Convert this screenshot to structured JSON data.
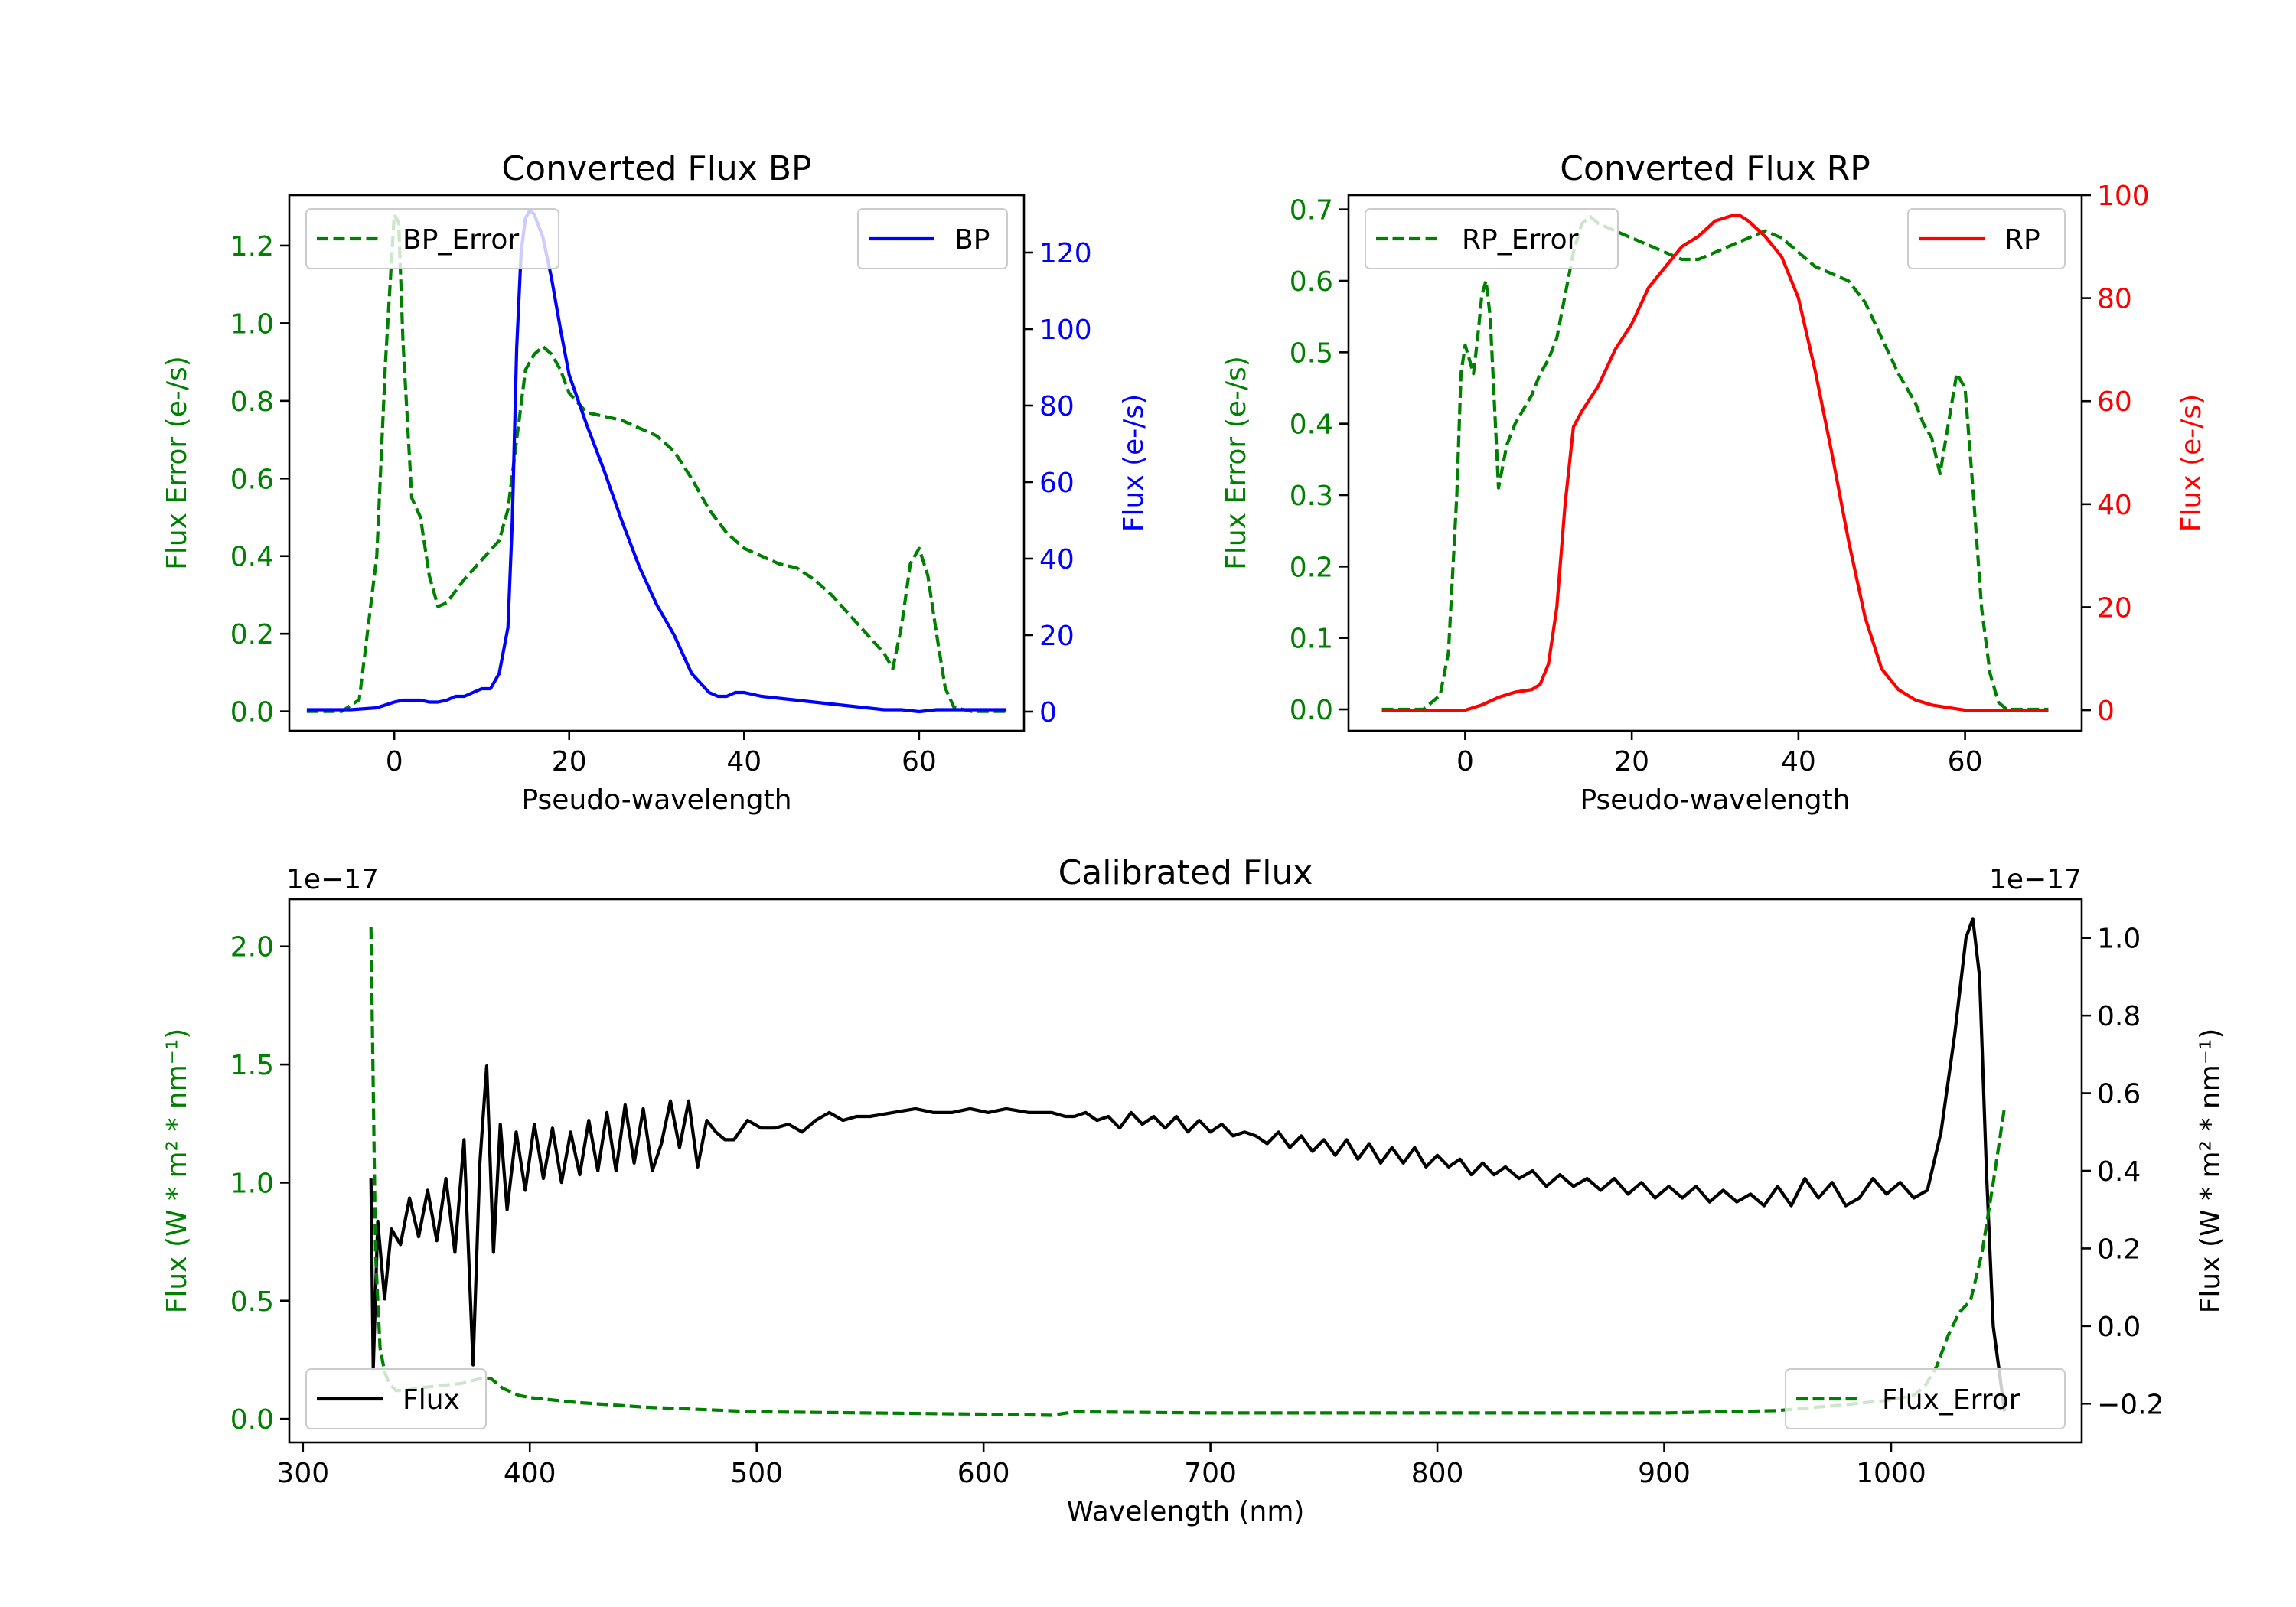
{
  "colors": {
    "green": "#008000",
    "blue": "#0000ff",
    "red": "#ff0000",
    "black": "#000000"
  },
  "chart_data": [
    {
      "id": "bp",
      "type": "line",
      "title": "Converted Flux BP",
      "xlabel": "Pseudo-wavelength",
      "ylabel_left": "Flux Error (e-/s)",
      "ylabel_right": "Flux (e-/s)",
      "xlim": [
        -12,
        72
      ],
      "ylim_left": [
        -0.05,
        1.33
      ],
      "ylim_right": [
        -5,
        135
      ],
      "xticks": [
        0,
        20,
        40,
        60
      ],
      "yticks_left": [
        0.0,
        0.2,
        0.4,
        0.6,
        0.8,
        1.0,
        1.2
      ],
      "yticks_left_labels": [
        "0.0",
        "0.2",
        "0.4",
        "0.6",
        "0.8",
        "1.0",
        "1.2"
      ],
      "yticks_right": [
        0,
        20,
        40,
        60,
        80,
        100,
        120
      ],
      "yticks_right_labels": [
        "0",
        "20",
        "40",
        "60",
        "80",
        "100",
        "120"
      ],
      "legend_left": {
        "label": "BP_Error",
        "placement": "upper left"
      },
      "legend_right": {
        "label": "BP",
        "placement": "upper right"
      },
      "series": [
        {
          "name": "BP_Error",
          "axis": "left",
          "color": "green",
          "style": "dashed",
          "x": [
            -10,
            -6,
            -4,
            -2,
            -1,
            0,
            0.5,
            1,
            2,
            3,
            4,
            5,
            6,
            8,
            10,
            12,
            13,
            14,
            15,
            16,
            17,
            18,
            19,
            20,
            22,
            24,
            26,
            28,
            30,
            32,
            34,
            36,
            38,
            40,
            42,
            44,
            46,
            48,
            50,
            52,
            54,
            56,
            57,
            58,
            59,
            60,
            61,
            62,
            63,
            64,
            66,
            68,
            70
          ],
          "y": [
            0.0,
            0.0,
            0.03,
            0.4,
            0.9,
            1.28,
            1.26,
            0.95,
            0.55,
            0.5,
            0.35,
            0.27,
            0.28,
            0.34,
            0.39,
            0.44,
            0.52,
            0.7,
            0.88,
            0.92,
            0.94,
            0.92,
            0.88,
            0.82,
            0.77,
            0.76,
            0.75,
            0.73,
            0.71,
            0.67,
            0.6,
            0.52,
            0.46,
            0.42,
            0.4,
            0.38,
            0.37,
            0.34,
            0.3,
            0.25,
            0.2,
            0.15,
            0.11,
            0.22,
            0.38,
            0.42,
            0.35,
            0.2,
            0.06,
            0.01,
            0.0,
            0.0,
            0.0
          ]
        },
        {
          "name": "BP",
          "axis": "right",
          "color": "blue",
          "style": "solid",
          "x": [
            -10,
            -5,
            -2,
            0,
            1,
            2,
            3,
            4,
            5,
            6,
            7,
            8,
            9,
            10,
            11,
            12,
            13,
            13.5,
            14,
            14.5,
            15,
            15.5,
            16,
            17,
            18,
            19,
            20,
            22,
            24,
            26,
            28,
            30,
            32,
            34,
            36,
            37,
            38,
            39,
            40,
            42,
            44,
            46,
            48,
            50,
            52,
            54,
            56,
            58,
            60,
            62,
            64,
            66,
            68,
            70
          ],
          "y": [
            0.5,
            0.5,
            1,
            2.5,
            3,
            3,
            3,
            2.5,
            2.5,
            3,
            4,
            4,
            5,
            6,
            6,
            10,
            22,
            50,
            95,
            120,
            129,
            131,
            130,
            124,
            113,
            100,
            88,
            75,
            63,
            50,
            38,
            28,
            20,
            10,
            5,
            4,
            4,
            5,
            5,
            4,
            3.5,
            3,
            2.5,
            2,
            1.5,
            1,
            0.5,
            0.5,
            0,
            0.5,
            0.5,
            0.5,
            0.5,
            0.5
          ]
        }
      ]
    },
    {
      "id": "rp",
      "type": "line",
      "title": "Converted Flux RP",
      "xlabel": "Pseudo-wavelength",
      "ylabel_left": "Flux Error (e-/s)",
      "ylabel_right": "Flux (e-/s)",
      "xlim": [
        -14,
        74
      ],
      "ylim_left": [
        -0.03,
        0.72
      ],
      "ylim_right": [
        -4,
        100
      ],
      "xticks": [
        0,
        20,
        40,
        60
      ],
      "yticks_left": [
        0.0,
        0.1,
        0.2,
        0.3,
        0.4,
        0.5,
        0.6,
        0.7
      ],
      "yticks_left_labels": [
        "0.0",
        "0.1",
        "0.2",
        "0.3",
        "0.4",
        "0.5",
        "0.6",
        "0.7"
      ],
      "yticks_right": [
        0,
        20,
        40,
        60,
        80,
        100
      ],
      "yticks_right_labels": [
        "0",
        "20",
        "40",
        "60",
        "80",
        "100"
      ],
      "legend_left": {
        "label": "RP_Error",
        "placement": "upper left"
      },
      "legend_right": {
        "label": "RP",
        "placement": "upper right"
      },
      "series": [
        {
          "name": "RP_Error",
          "axis": "left",
          "color": "green",
          "style": "dashed",
          "x": [
            -10,
            -5,
            -3,
            -2,
            -1,
            -0.5,
            0,
            0.5,
            1,
            1.5,
            2,
            2.5,
            3,
            4,
            5,
            6,
            7,
            8,
            9,
            10,
            11,
            12,
            13,
            14,
            15,
            16,
            18,
            20,
            22,
            24,
            26,
            28,
            30,
            32,
            34,
            36,
            38,
            40,
            42,
            44,
            46,
            48,
            50,
            52,
            54,
            55,
            56,
            57,
            58,
            59,
            60,
            61,
            62,
            63,
            64,
            65,
            70
          ],
          "y": [
            0.0,
            0.0,
            0.02,
            0.08,
            0.3,
            0.47,
            0.51,
            0.49,
            0.47,
            0.52,
            0.58,
            0.6,
            0.55,
            0.31,
            0.37,
            0.4,
            0.42,
            0.44,
            0.47,
            0.49,
            0.52,
            0.58,
            0.64,
            0.68,
            0.69,
            0.68,
            0.67,
            0.66,
            0.65,
            0.64,
            0.63,
            0.63,
            0.64,
            0.65,
            0.66,
            0.67,
            0.66,
            0.64,
            0.62,
            0.61,
            0.6,
            0.57,
            0.52,
            0.47,
            0.43,
            0.4,
            0.38,
            0.33,
            0.4,
            0.47,
            0.45,
            0.3,
            0.14,
            0.05,
            0.01,
            0.0,
            0.0
          ]
        },
        {
          "name": "RP",
          "axis": "right",
          "color": "red",
          "style": "solid",
          "x": [
            -10,
            -5,
            0,
            2,
            4,
            6,
            8,
            9,
            10,
            11,
            12,
            13,
            14,
            16,
            18,
            20,
            22,
            24,
            26,
            28,
            30,
            32,
            33,
            34,
            36,
            38,
            40,
            42,
            44,
            46,
            48,
            50,
            52,
            54,
            56,
            58,
            60,
            62,
            65,
            70
          ],
          "y": [
            0,
            0,
            0,
            1,
            2.5,
            3.5,
            4,
            5,
            9,
            20,
            40,
            55,
            58,
            63,
            70,
            75,
            82,
            86,
            90,
            92,
            95,
            96,
            96,
            95,
            92,
            88,
            80,
            66,
            50,
            33,
            18,
            8,
            4,
            2,
            1,
            0.5,
            0,
            0,
            0,
            0
          ]
        }
      ]
    },
    {
      "id": "cal",
      "type": "line",
      "title": "Calibrated Flux",
      "xlabel": "Wavelength (nm)",
      "ylabel_left": "Flux (W * m² * nm⁻¹)",
      "ylabel_right": "Flux (W * m² * nm⁻¹)",
      "offset_left": "1e−17",
      "offset_right": "1e−17",
      "xlim": [
        294,
        1084
      ],
      "ylim_left": [
        -0.1,
        2.2
      ],
      "ylim_right": [
        -0.3,
        1.1
      ],
      "xticks": [
        300,
        400,
        500,
        600,
        700,
        800,
        900,
        1000
      ],
      "yticks_left": [
        0.0,
        0.5,
        1.0,
        1.5,
        2.0
      ],
      "yticks_left_labels": [
        "0.0",
        "0.5",
        "1.0",
        "1.5",
        "2.0"
      ],
      "yticks_right": [
        -0.2,
        0.0,
        0.2,
        0.4,
        0.6,
        0.8,
        1.0
      ],
      "yticks_right_labels": [
        "−0.2",
        "0.0",
        "0.2",
        "0.4",
        "0.6",
        "0.8",
        "1.0"
      ],
      "legend_left": {
        "label": "Flux",
        "placement": "lower left"
      },
      "legend_right": {
        "label": "Flux_Error",
        "placement": "lower right"
      },
      "series": [
        {
          "name": "Flux",
          "axis": "right",
          "color": "black",
          "style": "solid",
          "x": [
            330,
            331,
            333,
            336,
            339,
            343,
            347,
            351,
            355,
            359,
            363,
            367,
            371,
            375,
            378,
            381,
            384,
            387,
            390,
            394,
            398,
            402,
            406,
            410,
            414,
            418,
            422,
            426,
            430,
            434,
            438,
            442,
            446,
            450,
            454,
            458,
            462,
            466,
            470,
            474,
            478,
            482,
            486,
            490,
            496,
            502,
            508,
            514,
            520,
            526,
            532,
            538,
            544,
            550,
            560,
            570,
            578,
            586,
            594,
            602,
            610,
            620,
            630,
            636,
            640,
            645,
            650,
            655,
            660,
            665,
            670,
            675,
            680,
            685,
            690,
            695,
            700,
            705,
            710,
            715,
            720,
            725,
            730,
            735,
            740,
            745,
            750,
            755,
            760,
            765,
            770,
            775,
            780,
            785,
            790,
            795,
            800,
            805,
            810,
            815,
            820,
            825,
            830,
            836,
            842,
            848,
            854,
            860,
            866,
            872,
            878,
            884,
            890,
            896,
            902,
            908,
            914,
            920,
            926,
            932,
            938,
            944,
            950,
            956,
            962,
            968,
            974,
            980,
            986,
            992,
            998,
            1004,
            1010,
            1016,
            1022,
            1028,
            1033,
            1036,
            1039,
            1042,
            1045,
            1050
          ],
          "y": [
            0.38,
            -0.11,
            0.27,
            0.07,
            0.25,
            0.21,
            0.33,
            0.23,
            0.35,
            0.22,
            0.38,
            0.19,
            0.48,
            -0.1,
            0.42,
            0.67,
            0.19,
            0.52,
            0.3,
            0.5,
            0.35,
            0.52,
            0.38,
            0.51,
            0.37,
            0.5,
            0.39,
            0.53,
            0.4,
            0.55,
            0.4,
            0.57,
            0.42,
            0.56,
            0.4,
            0.47,
            0.58,
            0.46,
            0.58,
            0.41,
            0.53,
            0.5,
            0.48,
            0.48,
            0.53,
            0.51,
            0.51,
            0.52,
            0.5,
            0.53,
            0.55,
            0.53,
            0.54,
            0.54,
            0.55,
            0.56,
            0.55,
            0.55,
            0.56,
            0.55,
            0.56,
            0.55,
            0.55,
            0.54,
            0.54,
            0.55,
            0.53,
            0.54,
            0.51,
            0.55,
            0.52,
            0.54,
            0.51,
            0.54,
            0.5,
            0.53,
            0.5,
            0.52,
            0.49,
            0.5,
            0.49,
            0.47,
            0.5,
            0.46,
            0.49,
            0.45,
            0.48,
            0.44,
            0.48,
            0.43,
            0.47,
            0.42,
            0.46,
            0.42,
            0.46,
            0.41,
            0.44,
            0.41,
            0.43,
            0.39,
            0.42,
            0.39,
            0.41,
            0.38,
            0.4,
            0.36,
            0.39,
            0.36,
            0.38,
            0.35,
            0.38,
            0.34,
            0.37,
            0.33,
            0.36,
            0.33,
            0.36,
            0.32,
            0.35,
            0.32,
            0.34,
            0.31,
            0.36,
            0.31,
            0.38,
            0.33,
            0.37,
            0.31,
            0.33,
            0.38,
            0.34,
            0.37,
            0.33,
            0.35,
            0.5,
            0.75,
            1.0,
            1.05,
            0.9,
            0.4,
            0.0,
            -0.22
          ]
        },
        {
          "name": "Flux_Error",
          "axis": "left",
          "color": "green",
          "style": "dashed",
          "x": [
            330,
            331,
            332,
            334,
            336,
            338,
            341,
            345,
            350,
            360,
            370,
            378,
            383,
            388,
            395,
            400,
            420,
            450,
            500,
            600,
            630,
            640,
            700,
            800,
            900,
            950,
            980,
            1000,
            1010,
            1015,
            1020,
            1025,
            1030,
            1035,
            1040,
            1045,
            1050
          ],
          "y": [
            2.08,
            1.4,
            0.7,
            0.3,
            0.2,
            0.15,
            0.12,
            0.12,
            0.13,
            0.14,
            0.15,
            0.17,
            0.17,
            0.13,
            0.1,
            0.09,
            0.07,
            0.05,
            0.03,
            0.02,
            0.015,
            0.03,
            0.025,
            0.025,
            0.025,
            0.035,
            0.06,
            0.08,
            0.1,
            0.14,
            0.22,
            0.35,
            0.45,
            0.5,
            0.7,
            1.0,
            1.32
          ]
        }
      ]
    }
  ]
}
